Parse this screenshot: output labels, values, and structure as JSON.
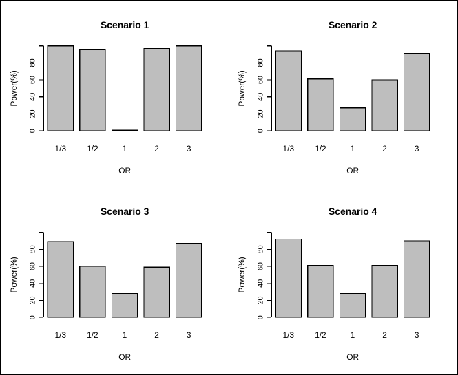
{
  "figure": {
    "background": "#ffffff",
    "border_color": "#000000",
    "layout": "2x2 grid of base-R style barplots"
  },
  "chart_data": [
    {
      "type": "bar",
      "title": "Scenario 1",
      "categories": [
        "1/3",
        "1/2",
        "1",
        "2",
        "3"
      ],
      "values": [
        100,
        96,
        1,
        97,
        100
      ],
      "xlabel": "OR",
      "ylabel": "Power(%)",
      "ylim": [
        0,
        100
      ],
      "yticks_labeled": [
        0,
        20,
        40,
        60,
        80
      ],
      "ytick_top_unlabeled": 100,
      "grid": false,
      "legend": false,
      "bar_fill": "#bebebe",
      "bar_stroke": "#000000"
    },
    {
      "type": "bar",
      "title": "Scenario 2",
      "categories": [
        "1/3",
        "1/2",
        "1",
        "2",
        "3"
      ],
      "values": [
        94,
        61,
        27,
        60,
        91
      ],
      "xlabel": "OR",
      "ylabel": "Power(%)",
      "ylim": [
        0,
        100
      ],
      "yticks_labeled": [
        0,
        20,
        40,
        60,
        80
      ],
      "ytick_top_unlabeled": 100,
      "grid": false,
      "legend": false,
      "bar_fill": "#bebebe",
      "bar_stroke": "#000000"
    },
    {
      "type": "bar",
      "title": "Scenario 3",
      "categories": [
        "1/3",
        "1/2",
        "1",
        "2",
        "3"
      ],
      "values": [
        89,
        60,
        28,
        59,
        87
      ],
      "xlabel": "OR",
      "ylabel": "Power(%)",
      "ylim": [
        0,
        100
      ],
      "yticks_labeled": [
        0,
        20,
        40,
        60,
        80
      ],
      "ytick_top_unlabeled": 100,
      "grid": false,
      "legend": false,
      "bar_fill": "#bebebe",
      "bar_stroke": "#000000"
    },
    {
      "type": "bar",
      "title": "Scenario 4",
      "categories": [
        "1/3",
        "1/2",
        "1",
        "2",
        "3"
      ],
      "values": [
        92,
        61,
        28,
        61,
        90
      ],
      "xlabel": "OR",
      "ylabel": "Power(%)",
      "ylim": [
        0,
        100
      ],
      "yticks_labeled": [
        0,
        20,
        40,
        60,
        80
      ],
      "ytick_top_unlabeled": 100,
      "grid": false,
      "legend": false,
      "bar_fill": "#bebebe",
      "bar_stroke": "#000000"
    }
  ]
}
